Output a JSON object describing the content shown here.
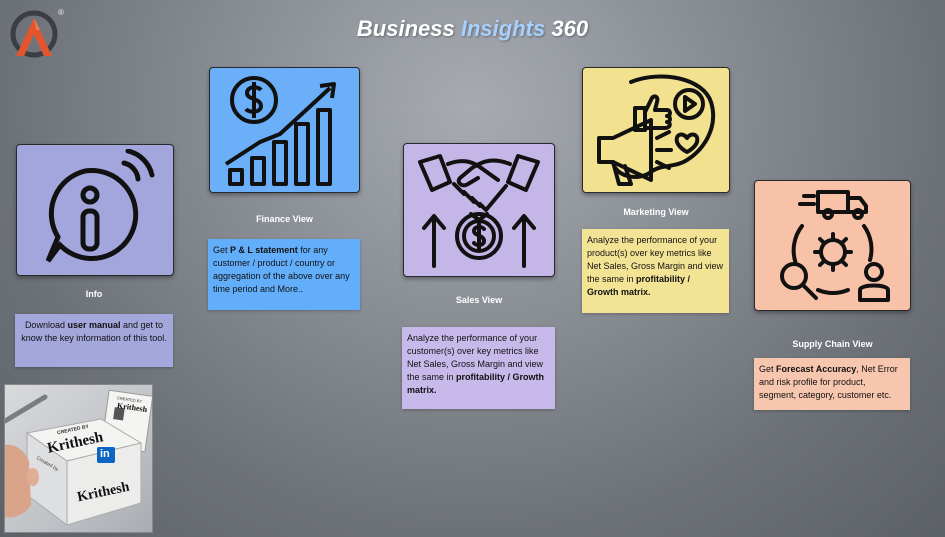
{
  "header": {
    "title_part1": "Business",
    "title_part2": "Insights",
    "title_part3": "360",
    "registered_mark": "®",
    "logo_icon": "atliq-logo-icon"
  },
  "colors": {
    "info": "#a3a6dc",
    "finance": "#6aaff8",
    "sales": "#c5b6e8",
    "marketing": "#f2e28f",
    "supply": "#f7c2a8",
    "desc_info": "#a4a7db",
    "desc_finance": "#63aefb",
    "desc_sales": "#c7b9ea",
    "desc_marketing": "#f3e495",
    "desc_supply": "#f7c6ae",
    "title_accent": "#a8d0ff"
  },
  "views": {
    "info": {
      "label": "Info",
      "icon": "info-speech-icon",
      "desc_1": "Download ",
      "desc_2": "user manual",
      "desc_3": " and get to know the key information of this tool."
    },
    "finance": {
      "label": "Finance View",
      "icon": "finance-growth-icon",
      "desc_1": "Get  ",
      "desc_2": "P & L statement",
      "desc_3": " for any customer / product / country or aggregation of the above over any time period and More.."
    },
    "sales": {
      "label": "Sales View",
      "icon": "handshake-money-icon",
      "desc_1": "Analyze the performance of your customer(s) over key metrics like Net Sales, Gross Margin and view the same in ",
      "desc_2": "profitability / Growth matrix."
    },
    "marketing": {
      "label": "Marketing View",
      "icon": "megaphone-social-icon",
      "desc_1": "Analyze the performance of your product(s) over key metrics like Net Sales, Gross Margin and view the same in ",
      "desc_2": "profitability / Growth matrix."
    },
    "supply": {
      "label": "Supply Chain View",
      "icon": "supply-chain-icon",
      "desc_1": "Get ",
      "desc_2": "Forecast Accuracy",
      "desc_3": ", Net Error and risk profile for product, segment, category, customer etc."
    }
  },
  "photo": {
    "box_text_1": "CREATED BY",
    "box_text_2": "Krithesh",
    "card_text_1": "CREATED BY",
    "card_text_2": "Krithesh",
    "side_text": "Created by",
    "linkedin": "in"
  }
}
